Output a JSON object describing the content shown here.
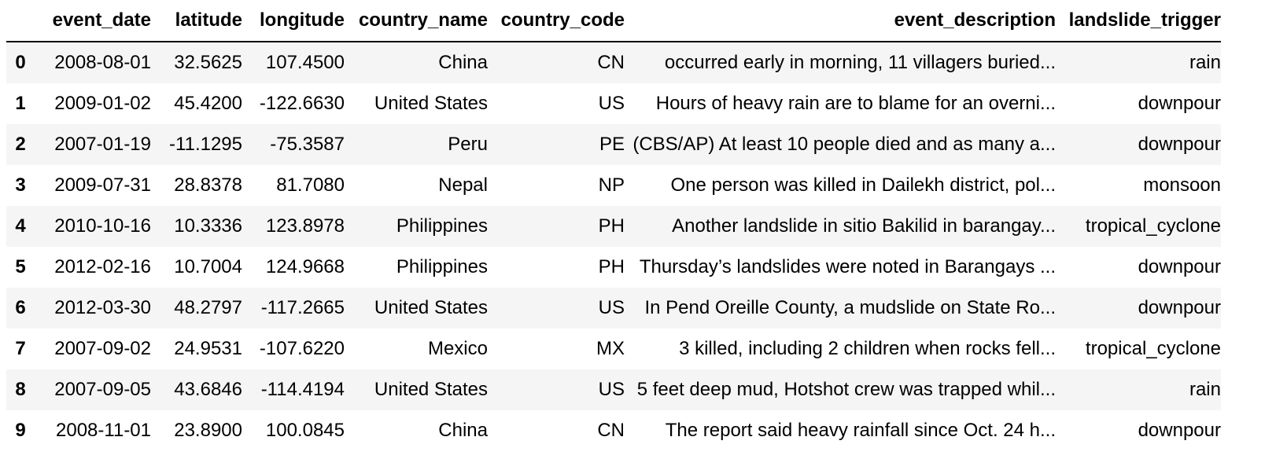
{
  "table": {
    "columns": [
      "",
      "event_date",
      "latitude",
      "longitude",
      "country_name",
      "country_code",
      "event_description",
      "landslide_trigger"
    ],
    "rows": [
      {
        "index": "0",
        "event_date": "2008-08-01",
        "latitude": "32.5625",
        "longitude": "107.4500",
        "country_name": "China",
        "country_code": "CN",
        "event_description": "occurred early in morning, 11 villagers buried...",
        "landslide_trigger": "rain"
      },
      {
        "index": "1",
        "event_date": "2009-01-02",
        "latitude": "45.4200",
        "longitude": "-122.6630",
        "country_name": "United States",
        "country_code": "US",
        "event_description": "Hours of heavy rain are to blame for an overni...",
        "landslide_trigger": "downpour"
      },
      {
        "index": "2",
        "event_date": "2007-01-19",
        "latitude": "-11.1295",
        "longitude": "-75.3587",
        "country_name": "Peru",
        "country_code": "PE",
        "event_description": "(CBS/AP) At least 10 people died and as many a...",
        "landslide_trigger": "downpour"
      },
      {
        "index": "3",
        "event_date": "2009-07-31",
        "latitude": "28.8378",
        "longitude": "81.7080",
        "country_name": "Nepal",
        "country_code": "NP",
        "event_description": "One person was killed in Dailekh district, pol...",
        "landslide_trigger": "monsoon"
      },
      {
        "index": "4",
        "event_date": "2010-10-16",
        "latitude": "10.3336",
        "longitude": "123.8978",
        "country_name": "Philippines",
        "country_code": "PH",
        "event_description": "Another landslide in sitio Bakilid in barangay...",
        "landslide_trigger": "tropical_cyclone"
      },
      {
        "index": "5",
        "event_date": "2012-02-16",
        "latitude": "10.7004",
        "longitude": "124.9668",
        "country_name": "Philippines",
        "country_code": "PH",
        "event_description": "Thursday’s landslides were noted in Barangays ...",
        "landslide_trigger": "downpour"
      },
      {
        "index": "6",
        "event_date": "2012-03-30",
        "latitude": "48.2797",
        "longitude": "-117.2665",
        "country_name": "United States",
        "country_code": "US",
        "event_description": "In Pend Oreille County, a mudslide on State Ro...",
        "landslide_trigger": "downpour"
      },
      {
        "index": "7",
        "event_date": "2007-09-02",
        "latitude": "24.9531",
        "longitude": "-107.6220",
        "country_name": "Mexico",
        "country_code": "MX",
        "event_description": "3 killed, including 2 children when rocks fell...",
        "landslide_trigger": "tropical_cyclone"
      },
      {
        "index": "8",
        "event_date": "2007-09-05",
        "latitude": "43.6846",
        "longitude": "-114.4194",
        "country_name": "United States",
        "country_code": "US",
        "event_description": "5 feet deep mud, Hotshot crew was trapped whil...",
        "landslide_trigger": "rain"
      },
      {
        "index": "9",
        "event_date": "2008-11-01",
        "latitude": "23.8900",
        "longitude": "100.0845",
        "country_name": "China",
        "country_code": "CN",
        "event_description": "The report said heavy rainfall since Oct. 24 h...",
        "landslide_trigger": "downpour"
      }
    ]
  }
}
